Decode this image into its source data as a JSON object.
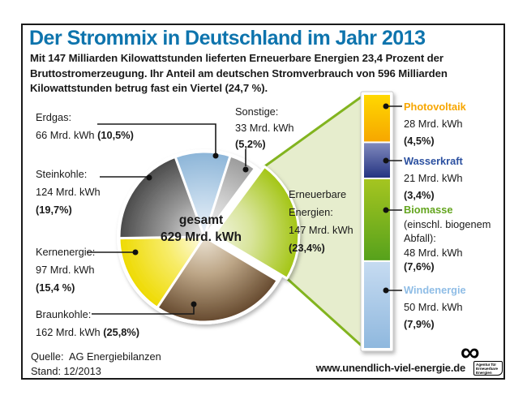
{
  "header": {
    "title": "Der Strommix in Deutschland im Jahr 2013",
    "intro": "Mit 147 Milliarden Kilowattstunden lieferten Erneuerbare Energien 23,4 Prozent der Bruttostromerzeugung. Ihr Anteil am deutschen Stromverbrauch von 596 Milliarden Kilowattstunden betrug fast ein Viertel (24,7 %)."
  },
  "pie_center": {
    "label": "gesamt",
    "value": "629 Mrd. kWh"
  },
  "labels": {
    "erdgas": {
      "name": "Erdgas:",
      "value": "66 Mrd. kWh ",
      "pct": "(10,5%)"
    },
    "steinkohle": {
      "name": "Steinkohle:",
      "value": "124 Mrd. kWh",
      "pct": "(19,7%)"
    },
    "kernenergie": {
      "name": "Kernenergie:",
      "value": "97 Mrd. kWh",
      "pct": "(15,4 %)"
    },
    "braunkohle": {
      "name": "Braunkohle:",
      "value": "162 Mrd. kWh ",
      "pct": "(25,8%)"
    },
    "sonstige": {
      "name": "Sonstige:",
      "value": "33 Mrd. kWh",
      "pct": "(5,2%)"
    },
    "erneuerbare": {
      "name1": "Erneuerbare",
      "name2": "Energien:",
      "value": "147 Mrd. kWh",
      "pct": "(23,4%)"
    }
  },
  "renewables": {
    "photovoltaik": {
      "name": "Photovoltaik",
      "value": "28 Mrd. kWh",
      "pct": "(4,5%)"
    },
    "wasserkraft": {
      "name": "Wasserkraft",
      "value": "21 Mrd. kWh",
      "pct": "(3,4%)"
    },
    "biomasse": {
      "name": "Biomasse",
      "note1": "(einschl. biogenem",
      "note2": "Abfall):",
      "value": "48 Mrd. kWh",
      "pct": "(7,6%)"
    },
    "windenergie": {
      "name": "Windenergie",
      "value": "50 Mrd. kWh",
      "pct": "(7,9%)"
    }
  },
  "footer": {
    "source_line1": "Quelle:  AG Energiebilanzen",
    "source_line2": "Stand: 12/2013",
    "website": "www.unendlich-viel-energie.de",
    "logo": {
      "symbol": "∞",
      "line1": "Agentur für",
      "line2": "Erneuerbare",
      "line3": "Energien"
    }
  },
  "chart_data": {
    "type": "pie",
    "title": "Der Strommix in Deutschland im Jahr 2013",
    "unit": "Mrd. kWh",
    "total": {
      "label": "gesamt",
      "value": 629
    },
    "start_angle_deg": -20,
    "slices": [
      {
        "id": "erdgas",
        "name": "Erdgas",
        "value": 66,
        "pct": 10.5,
        "explode": 0,
        "color_light": "#f0f5fa",
        "color_mid": "#c3d9ec",
        "color_dark": "#8cb5d8"
      },
      {
        "id": "sonstige",
        "name": "Sonstige",
        "value": 33,
        "pct": 5.2,
        "explode": 0,
        "color_light": "#f2f2f2",
        "color_mid": "#d2d2d2",
        "color_dark": "#9b9b9b"
      },
      {
        "id": "erneuerbare",
        "name": "Erneuerbare Energien",
        "value": 147,
        "pct": 23.4,
        "explode": 12,
        "color_light": "#f2f5e0",
        "color_mid": "#d8e49a",
        "color_dark": "#a3c513"
      },
      {
        "id": "braunkohle",
        "name": "Braunkohle",
        "value": 162,
        "pct": 25.8,
        "explode": 0,
        "color_light": "#ece3d4",
        "color_mid": "#bca586",
        "color_dark": "#65492e"
      },
      {
        "id": "kernenergie",
        "name": "Kernenergie",
        "value": 97,
        "pct": 15.4,
        "explode": 0,
        "color_light": "#fdfbe8",
        "color_mid": "#f7ec6a",
        "color_dark": "#eeda00"
      },
      {
        "id": "steinkohle",
        "name": "Steinkohle",
        "value": 124,
        "pct": 19.7,
        "explode": 0,
        "color_light": "#ececec",
        "color_mid": "#9a9a9a",
        "color_dark": "#4a4a4a"
      }
    ],
    "renewables_bar": {
      "total": 147,
      "segments": [
        {
          "id": "photovoltaik",
          "name": "Photovoltaik",
          "value": 28,
          "pct": 4.5,
          "color_top": "#ffd800",
          "color_bottom": "#f6a500",
          "label_color": "#f7a600"
        },
        {
          "id": "wasserkraft",
          "name": "Wasserkraft",
          "value": 21,
          "pct": 3.4,
          "color_top": "#8089bd",
          "color_bottom": "#20307f",
          "label_color": "#2b50a0"
        },
        {
          "id": "biomasse",
          "name": "Biomasse",
          "value": 48,
          "pct": 7.6,
          "color_top": "#a5c520",
          "color_bottom": "#55a11c",
          "label_color": "#64a51f"
        },
        {
          "id": "windenergie",
          "name": "Windenergie",
          "value": 50,
          "pct": 7.9,
          "color_top": "#c6dbf1",
          "color_bottom": "#8fb8de",
          "label_color": "#8fbde6"
        }
      ]
    },
    "funnel": {
      "fill": "#e6edcd",
      "edge": "#82b41f"
    },
    "colors": {
      "title_blue": "#0e74ad",
      "text": "#1a1a1a",
      "callout_line": "#1a1a1a"
    }
  }
}
